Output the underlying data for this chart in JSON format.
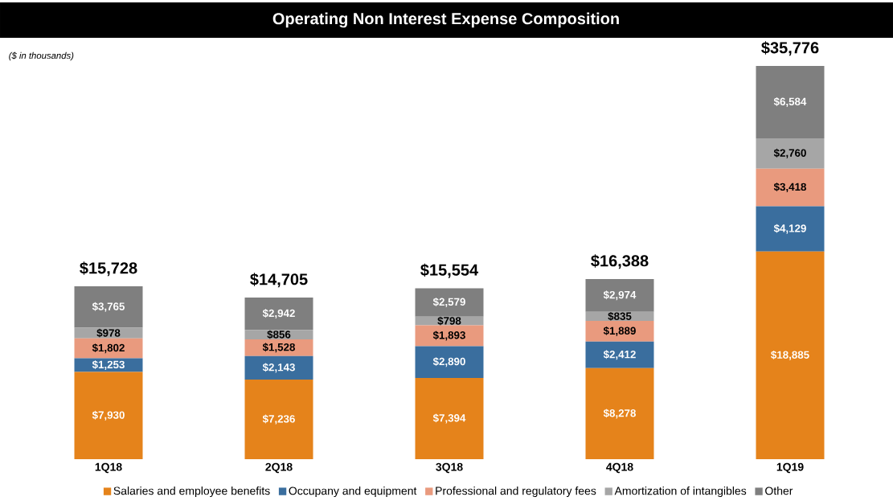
{
  "chart_data": {
    "type": "bar",
    "title": "Operating Non Interest Expense Composition",
    "annotations": [
      "($ in thousands)"
    ],
    "categories": [
      "1Q18",
      "2Q18",
      "3Q18",
      "4Q18",
      "1Q19"
    ],
    "stacked": true,
    "legend": "bottom",
    "series": [
      {
        "name": "Salaries and employee benefits",
        "color": "#e5831b",
        "values": [
          7930,
          7236,
          7394,
          8278,
          18885
        ],
        "value_labels": [
          "$7,930",
          "$7,236",
          "$7,394",
          "$8,278",
          "$18,885"
        ]
      },
      {
        "name": "Occupany and equipment",
        "color": "#3a6e9e",
        "values": [
          1253,
          2143,
          2890,
          2412,
          4129
        ],
        "value_labels": [
          "$1,253",
          "$2,143",
          "$2,890",
          "$2,412",
          "$4,129"
        ]
      },
      {
        "name": "Professional and regulatory fees",
        "color": "#e99a7e",
        "values": [
          1802,
          1528,
          1893,
          1889,
          3418
        ],
        "value_labels": [
          "$1,802",
          "$1,528",
          "$1,893",
          "$1,889",
          "$3,418"
        ]
      },
      {
        "name": "Amortization of intangibles",
        "color": "#a6a6a6",
        "values": [
          978,
          856,
          798,
          835,
          2760
        ],
        "value_labels": [
          "$978",
          "$856",
          "$798",
          "$835",
          "$2,760"
        ]
      },
      {
        "name": "Other",
        "color": "#7f7f7f",
        "values": [
          3765,
          2942,
          2579,
          2974,
          6584
        ],
        "value_labels": [
          "$3,765",
          "$2,942",
          "$2,579",
          "$2,974",
          "$6,584"
        ]
      }
    ],
    "totals": [
      "$15,728",
      "$14,705",
      "$15,554",
      "$16,388",
      "$35,776"
    ]
  }
}
